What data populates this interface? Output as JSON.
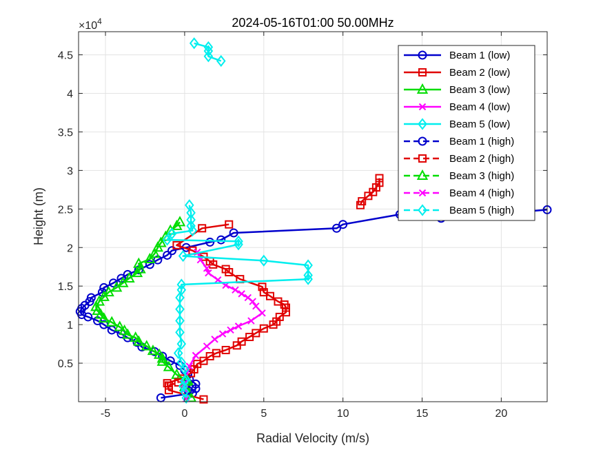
{
  "chart_data": {
    "type": "line",
    "title": "2024-05-16T01:00 50.00MHz",
    "xlabel": "Radial Velocity (m/s)",
    "ylabel": "Height (m)",
    "y_exponent_label": "×10",
    "y_exponent_power": "4",
    "xlim": [
      -6.7,
      22.9
    ],
    "ylim": [
      0,
      48000
    ],
    "xticks": [
      -5,
      0,
      5,
      10,
      15,
      20
    ],
    "xtick_labels": [
      "-5",
      "0",
      "5",
      "10",
      "15",
      "20"
    ],
    "yticks": [
      5000,
      10000,
      15000,
      20000,
      25000,
      30000,
      35000,
      40000,
      45000
    ],
    "ytick_labels": [
      "0.5",
      "1",
      "1.5",
      "2",
      "2.5",
      "3",
      "3.5",
      "4",
      "4.5"
    ],
    "grid": true,
    "legend_position": "top-right",
    "series": [
      {
        "name": "Beam 1 (low)",
        "color": "#0000cc",
        "marker": "circle",
        "line": "solid",
        "points": [
          [
            -1.5,
            500
          ],
          [
            0.5,
            1100
          ],
          [
            0.7,
            1700
          ],
          [
            0.7,
            2300
          ],
          [
            0.3,
            2900
          ],
          [
            0.2,
            3500
          ],
          [
            0.0,
            4100
          ],
          [
            -0.3,
            4700
          ],
          [
            -0.9,
            5300
          ],
          [
            -1.4,
            5900
          ],
          [
            -1.9,
            6500
          ],
          [
            -2.7,
            7100
          ],
          [
            -3.0,
            7700
          ],
          [
            -3.6,
            8300
          ],
          [
            -4.0,
            8800
          ],
          [
            -4.6,
            9300
          ],
          [
            -5.1,
            10000
          ],
          [
            -5.5,
            10500
          ],
          [
            -6.1,
            11000
          ],
          [
            -6.5,
            11300
          ],
          [
            -6.6,
            11700
          ],
          [
            -6.5,
            12100
          ],
          [
            -6.3,
            12500
          ],
          [
            -6.0,
            13000
          ],
          [
            -5.9,
            13500
          ],
          [
            -5.2,
            14200
          ],
          [
            -5.1,
            14800
          ],
          [
            -4.5,
            15400
          ],
          [
            -4.0,
            16000
          ],
          [
            -3.6,
            16500
          ],
          [
            -2.9,
            17100
          ],
          [
            -2.2,
            17800
          ],
          [
            -1.7,
            18400
          ],
          [
            -1.1,
            19000
          ],
          [
            -0.8,
            19600
          ],
          [
            0.1,
            20000
          ],
          [
            1.6,
            20700
          ],
          [
            2.3,
            21000
          ],
          [
            3.1,
            21900
          ],
          [
            9.6,
            22500
          ],
          [
            10.0,
            23000
          ],
          [
            13.6,
            24300
          ],
          [
            16.2,
            23800
          ],
          [
            22.9,
            24900
          ]
        ]
      },
      {
        "name": "Beam 2 (low)",
        "color": "#e00000",
        "marker": "square",
        "line": "solid",
        "points": [
          [
            1.2,
            300
          ],
          [
            -1.0,
            1500
          ],
          [
            -1.1,
            2400
          ],
          [
            -0.2,
            3000
          ],
          [
            0.4,
            3700
          ],
          [
            0.6,
            4200
          ],
          [
            0.8,
            4900
          ],
          [
            1.2,
            5300
          ],
          [
            1.6,
            5900
          ],
          [
            2.0,
            6300
          ],
          [
            2.6,
            6700
          ],
          [
            3.3,
            7300
          ],
          [
            3.6,
            7800
          ],
          [
            4.1,
            8400
          ],
          [
            4.5,
            8900
          ],
          [
            5.0,
            9500
          ],
          [
            5.6,
            10000
          ],
          [
            5.8,
            10400
          ],
          [
            6.0,
            11000
          ],
          [
            6.4,
            11600
          ],
          [
            6.4,
            12200
          ],
          [
            6.3,
            12600
          ],
          [
            5.9,
            13000
          ],
          [
            5.4,
            13700
          ],
          [
            5.0,
            14200
          ],
          [
            4.9,
            14900
          ],
          [
            3.5,
            15900
          ],
          [
            2.8,
            16800
          ],
          [
            2.6,
            17200
          ],
          [
            1.8,
            17800
          ],
          [
            1.6,
            18200
          ],
          [
            1.2,
            18800
          ],
          [
            0.5,
            19600
          ],
          [
            -0.5,
            20300
          ],
          [
            1.1,
            22500
          ],
          [
            2.8,
            23000
          ]
        ]
      },
      {
        "name": "Beam 2 (low) upper",
        "color": "#e00000",
        "marker": "square",
        "line": "solid",
        "points": [
          [
            11.1,
            25500
          ],
          [
            11.2,
            26000
          ],
          [
            11.6,
            26700
          ],
          [
            11.9,
            27200
          ],
          [
            12.1,
            27800
          ],
          [
            12.3,
            28400
          ],
          [
            12.3,
            29000
          ]
        ]
      },
      {
        "name": "Beam 3 (low)",
        "color": "#00dd00",
        "marker": "triangle",
        "line": "solid",
        "points": [
          [
            0.4,
            500
          ],
          [
            0.2,
            2700
          ],
          [
            -0.5,
            3500
          ],
          [
            -1.0,
            4500
          ],
          [
            -1.4,
            5200
          ],
          [
            -1.4,
            5600
          ],
          [
            -1.6,
            6100
          ],
          [
            -2.0,
            6600
          ],
          [
            -2.4,
            7200
          ],
          [
            -2.9,
            7800
          ],
          [
            -3.1,
            8300
          ],
          [
            -3.6,
            8700
          ],
          [
            -3.8,
            9200
          ],
          [
            -4.1,
            9700
          ],
          [
            -4.6,
            10300
          ],
          [
            -5.1,
            10800
          ],
          [
            -5.3,
            11300
          ],
          [
            -5.5,
            11800
          ],
          [
            -5.6,
            12300
          ],
          [
            -5.4,
            13000
          ],
          [
            -5.1,
            13600
          ],
          [
            -4.8,
            14200
          ],
          [
            -4.3,
            14800
          ],
          [
            -3.9,
            15400
          ],
          [
            -3.5,
            16000
          ],
          [
            -3.0,
            16700
          ],
          [
            -2.8,
            17200
          ],
          [
            -2.9,
            17900
          ],
          [
            -2.2,
            18500
          ],
          [
            -1.9,
            19200
          ],
          [
            -1.7,
            20000
          ],
          [
            -1.5,
            20600
          ],
          [
            -1.2,
            21400
          ],
          [
            -0.9,
            22200
          ],
          [
            -0.5,
            22800
          ],
          [
            -0.3,
            23300
          ]
        ]
      },
      {
        "name": "Beam 4 (low)",
        "color": "#ff00ff",
        "marker": "x",
        "line": "solid",
        "points": [
          [
            0.1,
            400
          ],
          [
            0.0,
            2300
          ],
          [
            0.3,
            4600
          ],
          [
            0.7,
            6000
          ],
          [
            1.4,
            7200
          ],
          [
            1.9,
            8100
          ],
          [
            2.4,
            8800
          ],
          [
            2.9,
            9300
          ],
          [
            3.4,
            9800
          ],
          [
            4.2,
            10500
          ],
          [
            4.9,
            11500
          ],
          [
            4.5,
            12400
          ],
          [
            4.3,
            13000
          ],
          [
            4.0,
            13500
          ],
          [
            3.6,
            14000
          ],
          [
            3.2,
            14500
          ],
          [
            2.6,
            15100
          ],
          [
            2.1,
            15800
          ],
          [
            1.5,
            16700
          ],
          [
            1.4,
            17300
          ],
          [
            1.0,
            18400
          ],
          [
            0.8,
            19400
          ]
        ]
      },
      {
        "name": "Beam 5 (low)",
        "color": "#00eeee",
        "marker": "diamond",
        "line": "solid",
        "points": [
          [
            0.1,
            500
          ],
          [
            0.1,
            2800
          ],
          [
            0.0,
            4200
          ],
          [
            -0.2,
            5100
          ],
          [
            -0.4,
            6300
          ],
          [
            -0.2,
            7500
          ],
          [
            -0.3,
            9000
          ],
          [
            -0.3,
            10500
          ],
          [
            -0.3,
            12000
          ],
          [
            -0.3,
            13500
          ],
          [
            -0.2,
            14500
          ],
          [
            -0.2,
            15200
          ],
          [
            7.8,
            15900
          ],
          [
            7.8,
            16400
          ],
          [
            7.8,
            17700
          ],
          [
            5.0,
            18300
          ],
          [
            -0.1,
            18900
          ],
          [
            3.4,
            20400
          ],
          [
            3.4,
            20800
          ],
          [
            -1.1,
            21000
          ],
          [
            -0.8,
            21800
          ],
          [
            0.5,
            22200
          ],
          [
            0.4,
            22800
          ],
          [
            0.4,
            23600
          ],
          [
            0.4,
            24500
          ],
          [
            0.3,
            25500
          ]
        ]
      },
      {
        "name": "Beam 5 (low) upper",
        "color": "#00eeee",
        "marker": "diamond",
        "line": "solid",
        "points": [
          [
            0.6,
            46500
          ],
          [
            1.5,
            46000
          ],
          [
            1.5,
            45500
          ],
          [
            1.5,
            44800
          ],
          [
            2.3,
            44200
          ]
        ]
      },
      {
        "name": "Beam 1 (high)",
        "color": "#0000cc",
        "marker": "circle",
        "line": "dashed",
        "points": [
          [
            0.2,
            1500
          ],
          [
            0.1,
            2200
          ]
        ]
      },
      {
        "name": "Beam 2 (high)",
        "color": "#e00000",
        "marker": "square",
        "line": "dashed",
        "points": [
          [
            -1.0,
            2100
          ],
          [
            -0.4,
            2500
          ]
        ]
      },
      {
        "name": "Beam 3 (high)",
        "color": "#00dd00",
        "marker": "triangle",
        "line": "dashed",
        "points": [
          [
            0.0,
            1900
          ],
          [
            0.1,
            2600
          ]
        ]
      },
      {
        "name": "Beam 4 (high)",
        "color": "#ff00ff",
        "marker": "x",
        "line": "dashed",
        "points": [
          [
            0.0,
            1600
          ],
          [
            0.0,
            2400
          ]
        ]
      },
      {
        "name": "Beam 5 (high)",
        "color": "#00eeee",
        "marker": "diamond",
        "line": "dashed",
        "points": [
          [
            0.0,
            1300
          ],
          [
            -0.1,
            2000
          ],
          [
            0.0,
            2700
          ]
        ]
      }
    ],
    "legend": [
      {
        "label": "Beam 1 (low)",
        "color": "#0000cc",
        "marker": "circle",
        "line": "solid"
      },
      {
        "label": "Beam 2 (low)",
        "color": "#e00000",
        "marker": "square",
        "line": "solid"
      },
      {
        "label": "Beam 3 (low)",
        "color": "#00dd00",
        "marker": "triangle",
        "line": "solid"
      },
      {
        "label": "Beam 4 (low)",
        "color": "#ff00ff",
        "marker": "x",
        "line": "solid"
      },
      {
        "label": "Beam 5 (low)",
        "color": "#00eeee",
        "marker": "diamond",
        "line": "solid"
      },
      {
        "label": "Beam 1 (high)",
        "color": "#0000cc",
        "marker": "circle",
        "line": "dashed"
      },
      {
        "label": "Beam 2 (high)",
        "color": "#e00000",
        "marker": "square",
        "line": "dashed"
      },
      {
        "label": "Beam 3 (high)",
        "color": "#00dd00",
        "marker": "triangle",
        "line": "dashed"
      },
      {
        "label": "Beam 4 (high)",
        "color": "#ff00ff",
        "marker": "x",
        "line": "dashed"
      },
      {
        "label": "Beam 5 (high)",
        "color": "#00eeee",
        "marker": "diamond",
        "line": "dashed"
      }
    ]
  }
}
